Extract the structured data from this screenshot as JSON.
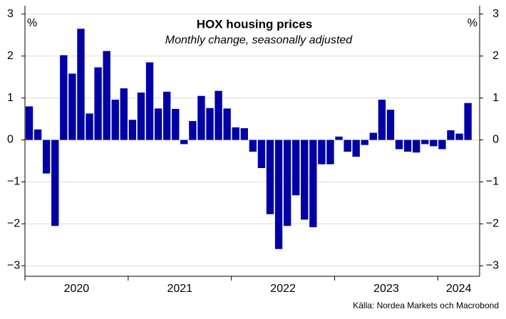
{
  "chart_data": {
    "type": "bar",
    "title": "HOX housing prices",
    "subtitle": "Monthly change, seasonally adjusted",
    "y_unit_left": "%",
    "y_unit_right": "%",
    "source": "Källa: Nordea Markets och Macrobond",
    "color": "#0000a5",
    "categories": [
      null,
      null,
      null,
      null,
      null,
      null,
      null,
      null,
      null,
      null,
      null,
      null,
      null,
      null,
      null,
      null,
      null,
      null,
      null,
      null,
      null,
      null,
      null,
      null,
      null,
      null,
      null,
      null,
      null,
      null,
      null,
      null,
      null,
      null,
      null,
      null,
      null,
      null,
      null,
      null,
      null,
      null,
      null,
      null,
      null,
      null,
      null,
      null,
      null,
      null,
      null,
      null
    ],
    "year_labels": [
      "2020",
      "2021",
      "2022",
      "2023",
      "2024"
    ],
    "values": [
      0.8,
      0.25,
      -0.8,
      -2.05,
      2.02,
      1.58,
      2.65,
      0.63,
      1.73,
      2.12,
      0.96,
      1.23,
      0.48,
      1.13,
      1.85,
      0.75,
      1.15,
      0.74,
      -0.1,
      0.45,
      1.05,
      0.76,
      1.17,
      0.75,
      0.3,
      0.28,
      -0.28,
      -0.67,
      -1.77,
      -2.6,
      -2.05,
      -1.32,
      -1.9,
      -2.08,
      -0.58,
      -0.58,
      0.08,
      -0.28,
      -0.4,
      -0.12,
      0.17,
      0.96,
      0.72,
      -0.22,
      -0.28,
      -0.3,
      -0.1,
      -0.15,
      -0.22,
      0.23,
      0.15,
      0.88
    ],
    "ylim": [
      -3.25,
      3.2
    ],
    "yticks": [
      {
        "value": -3,
        "label": "−3"
      },
      {
        "value": -2,
        "label": "−2"
      },
      {
        "value": -1,
        "label": "−1"
      },
      0,
      1,
      2,
      3
    ],
    "grid": true
  }
}
